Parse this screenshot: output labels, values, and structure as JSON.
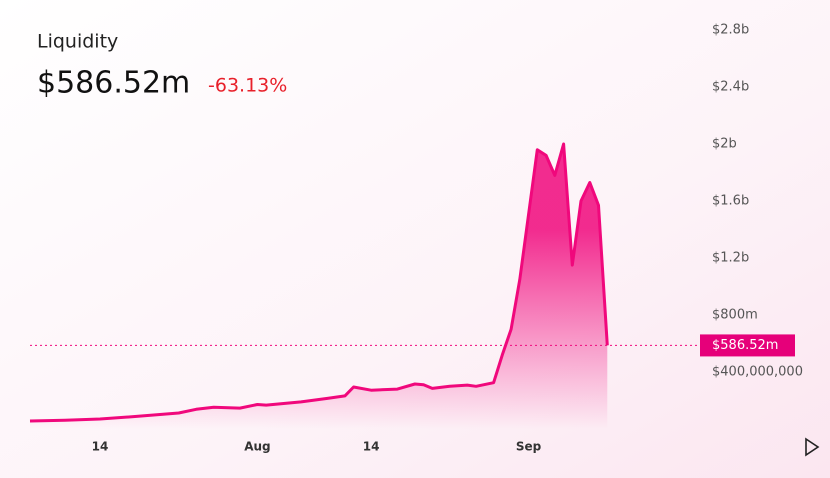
{
  "chart_data": {
    "type": "area",
    "title": "Liquidity",
    "current_label": "$586.52m",
    "change": "-63.13%",
    "color": "#f0087c",
    "x": [
      -8,
      -4,
      0,
      4,
      9,
      11,
      13,
      16,
      18,
      19,
      23,
      26,
      28,
      29,
      31,
      34,
      36,
      37,
      38,
      40,
      42,
      43,
      45,
      46,
      47,
      48,
      50,
      51,
      52,
      53,
      54,
      55,
      56,
      57,
      58
    ],
    "values": [
      56000000,
      62000000,
      70000000,
      88000000,
      112000000,
      138000000,
      152000000,
      147000000,
      172000000,
      168000000,
      190000000,
      215000000,
      232000000,
      295000000,
      272000000,
      280000000,
      316000000,
      310000000,
      285000000,
      300000000,
      308000000,
      300000000,
      325000000,
      520000000,
      700000000,
      1050000000,
      1960000000,
      1920000000,
      1780000000,
      2000000000,
      1150000000,
      1600000000,
      1730000000,
      1570000000,
      586520000
    ],
    "xlim": [
      -8,
      68.6
    ],
    "xticks": [
      {
        "value": 0,
        "label": "14"
      },
      {
        "value": 18,
        "label": "Aug"
      },
      {
        "value": 31,
        "label": "14"
      },
      {
        "value": 49,
        "label": "Sep"
      }
    ],
    "ylim": [
      0,
      2800000000
    ],
    "yticks": [
      {
        "value": 400000000,
        "label": "$400,000,000"
      },
      {
        "value": 800000000,
        "label": "$800m"
      },
      {
        "value": 1200000000,
        "label": "$1.2b"
      },
      {
        "value": 1600000000,
        "label": "$1.6b"
      },
      {
        "value": 2000000000,
        "label": "$2b"
      },
      {
        "value": 2400000000,
        "label": "$2.4b"
      },
      {
        "value": 2800000000,
        "label": "$2.8b"
      }
    ]
  }
}
